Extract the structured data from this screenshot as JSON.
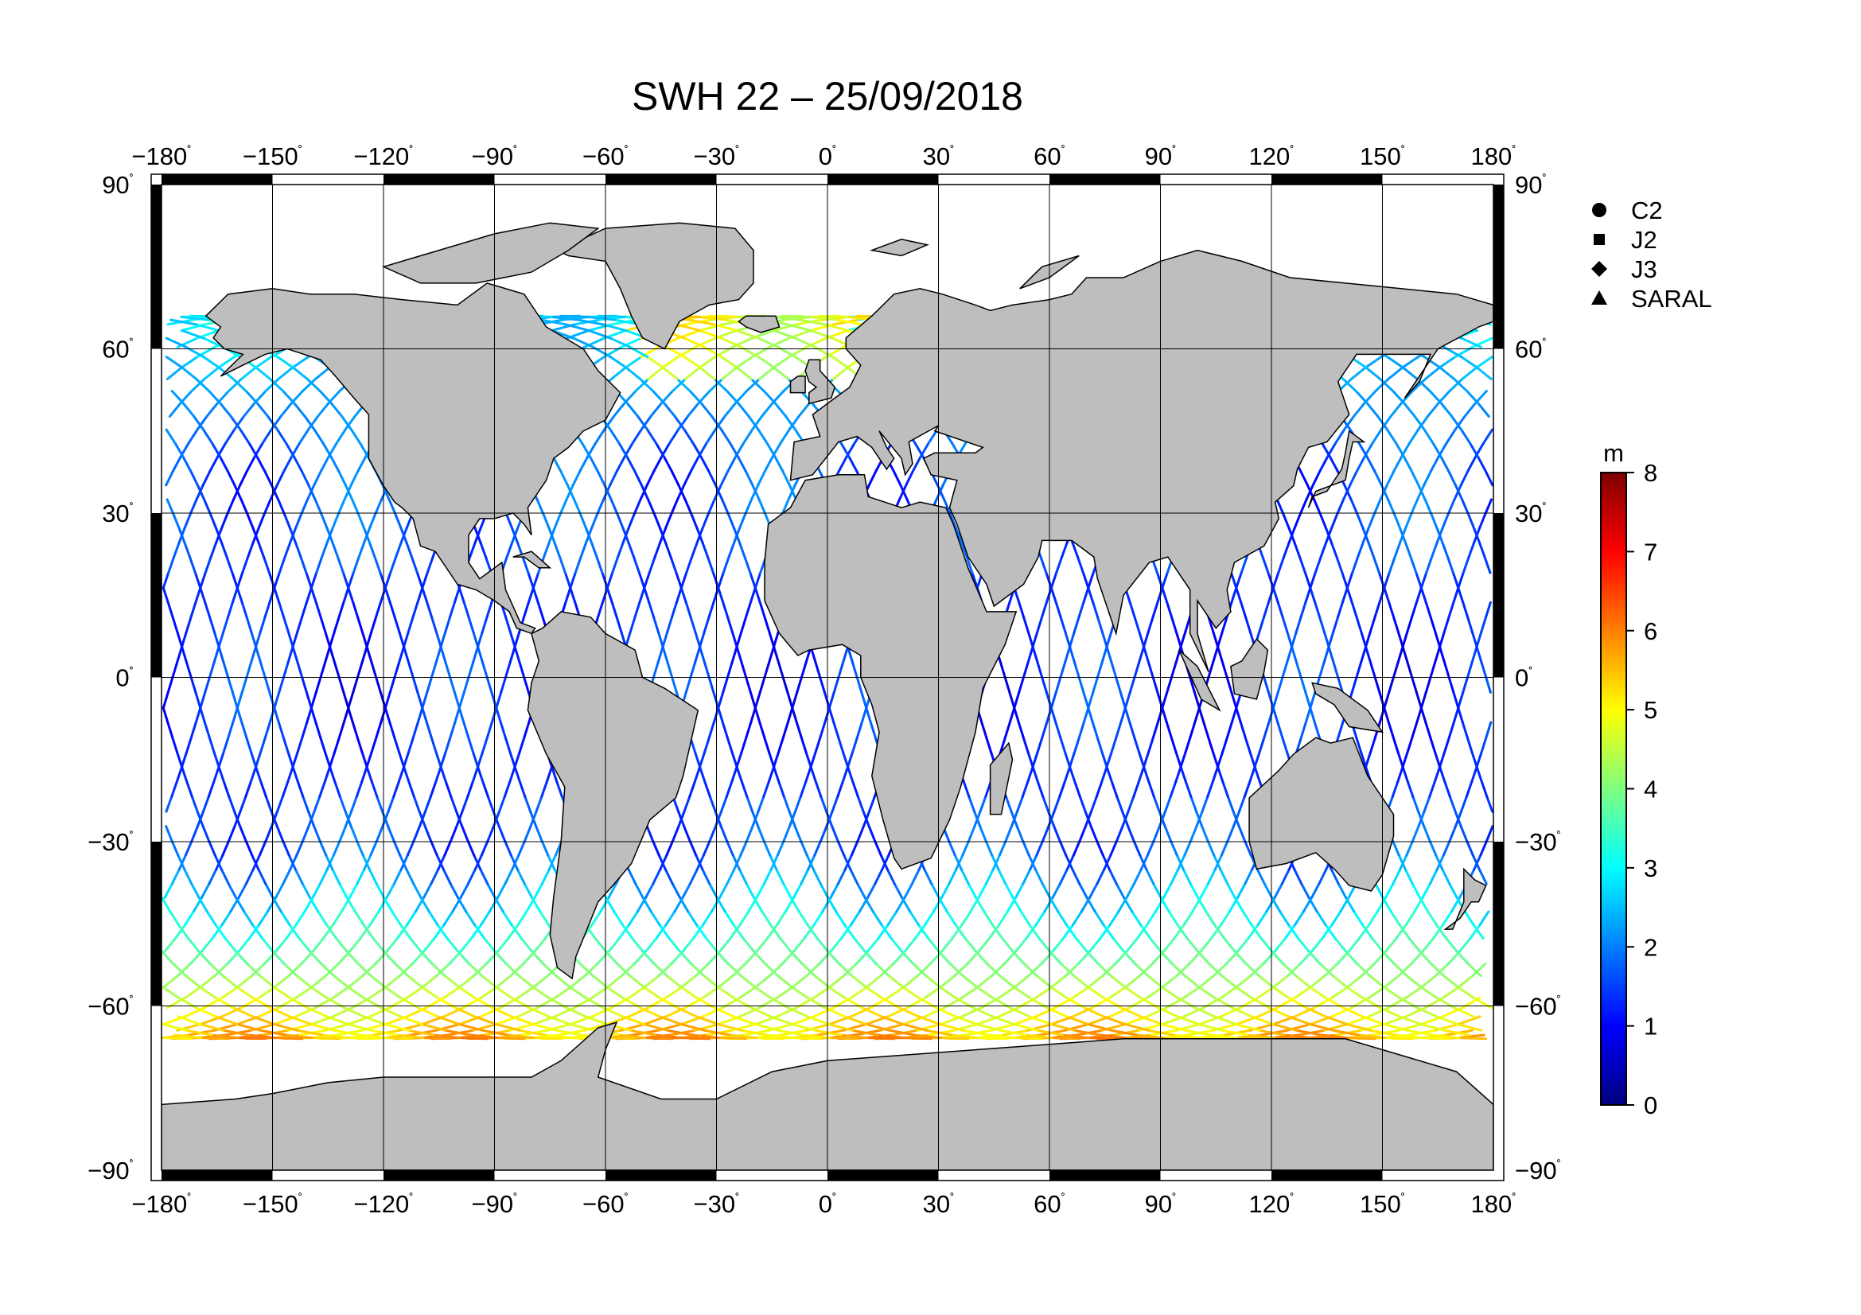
{
  "title": "SWH 22 – 25/09/2018",
  "lon_ticks": [
    {
      "value": -180,
      "label": "−180"
    },
    {
      "value": -150,
      "label": "−150"
    },
    {
      "value": -120,
      "label": "−120"
    },
    {
      "value": -90,
      "label": "−90"
    },
    {
      "value": -60,
      "label": "−60"
    },
    {
      "value": -30,
      "label": "−30"
    },
    {
      "value": 0,
      "label": "0"
    },
    {
      "value": 30,
      "label": "30"
    },
    {
      "value": 60,
      "label": "60"
    },
    {
      "value": 90,
      "label": "90"
    },
    {
      "value": 120,
      "label": "120"
    },
    {
      "value": 150,
      "label": "150"
    },
    {
      "value": 180,
      "label": "180"
    }
  ],
  "lat_ticks": [
    {
      "value": 90,
      "label": "90"
    },
    {
      "value": 60,
      "label": "60"
    },
    {
      "value": 30,
      "label": "30"
    },
    {
      "value": 0,
      "label": "0"
    },
    {
      "value": -30,
      "label": "−30"
    },
    {
      "value": -60,
      "label": "−60"
    },
    {
      "value": -90,
      "label": "−90"
    }
  ],
  "degree_symbol": "˚",
  "legend": [
    {
      "label": "C2",
      "icon": "circle-icon"
    },
    {
      "label": "J2",
      "icon": "square-icon"
    },
    {
      "label": "J3",
      "icon": "diamond-icon"
    },
    {
      "label": "SARAL",
      "icon": "triangle-icon"
    }
  ],
  "colorbar": {
    "unit": "m",
    "min": 0,
    "max": 8,
    "ticks": [
      "0",
      "1",
      "2",
      "3",
      "4",
      "5",
      "6",
      "7",
      "8"
    ],
    "colors": [
      "#00007f",
      "#0000ff",
      "#007fff",
      "#00ffff",
      "#7fff7f",
      "#ffff00",
      "#ff7f00",
      "#ff0000",
      "#7f0000"
    ]
  },
  "colors": {
    "land": "#bebebe",
    "ocean": "#ffffff",
    "frame": "#000000",
    "grid": "#000000"
  },
  "chart_data": {
    "type": "map",
    "xlim": [
      -180,
      180
    ],
    "ylim": [
      -90,
      90
    ],
    "grid": true,
    "legend_placement": "right",
    "variable_unit": "m"
  }
}
